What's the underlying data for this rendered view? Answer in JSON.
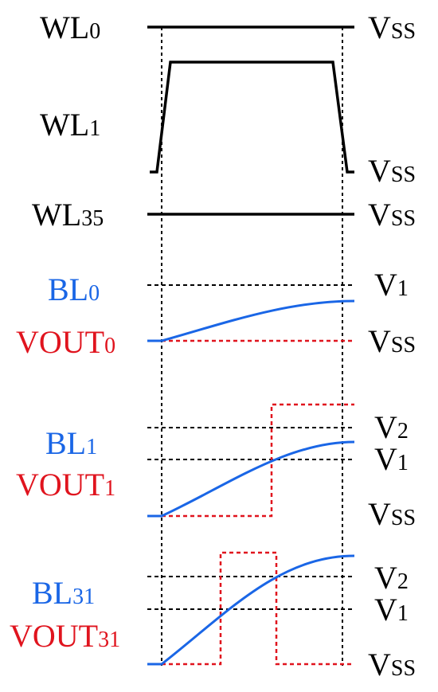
{
  "colors": {
    "black": "#000000",
    "blue": "#1a66e6",
    "red": "#e0141e",
    "guide": "#000000"
  },
  "left_labels": {
    "wl0": {
      "main": "WL",
      "sub": "0"
    },
    "wl1": {
      "main": "WL",
      "sub": "1"
    },
    "wl35": {
      "main": "WL",
      "sub": "35"
    },
    "bl0": {
      "main": "BL",
      "sub": "0"
    },
    "vout0": {
      "main": "VOUT",
      "sub": "0"
    },
    "bl1": {
      "main": "BL",
      "sub": "1"
    },
    "vout1": {
      "main": "VOUT",
      "sub": "1"
    },
    "bl31": {
      "main": "BL",
      "sub": "31"
    },
    "vout31": {
      "main": "VOUT",
      "sub": "31"
    }
  },
  "right_labels": {
    "vss_wl0": {
      "main": "V",
      "sub": "SS"
    },
    "vss_wl1": {
      "main": "V",
      "sub": "SS"
    },
    "vss_wl35": {
      "main": "V",
      "sub": "SS"
    },
    "v1_bl0": {
      "main": "V",
      "sub": "1"
    },
    "vss_bl0": {
      "main": "V",
      "sub": "SS"
    },
    "v2_bl1": {
      "main": "V",
      "sub": "2"
    },
    "v1_bl1": {
      "main": "V",
      "sub": "1"
    },
    "vss_bl1": {
      "main": "V",
      "sub": "SS"
    },
    "v2_bl31": {
      "main": "V",
      "sub": "2"
    },
    "v1_bl31": {
      "main": "V",
      "sub": "1"
    },
    "vss_bl31": {
      "main": "V",
      "sub": "SS"
    }
  }
}
